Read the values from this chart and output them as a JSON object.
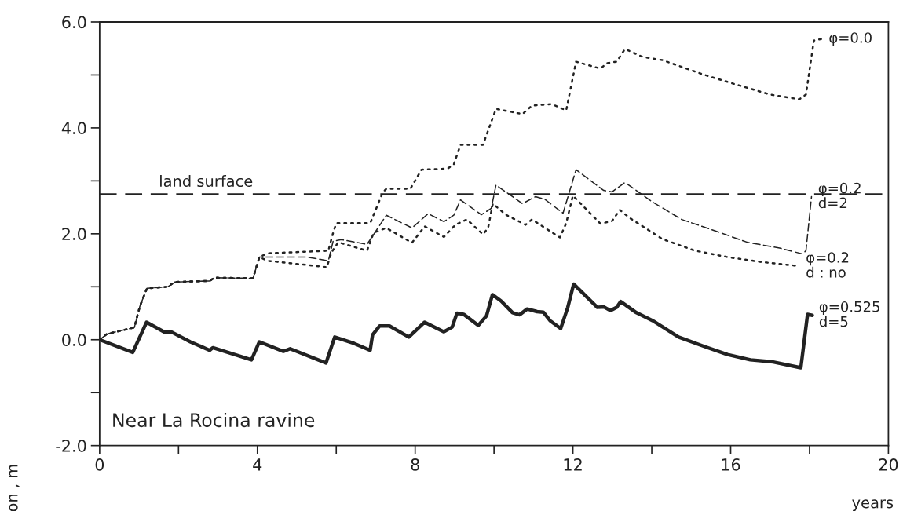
{
  "chart_data": {
    "type": "line",
    "xlabel": "years",
    "ylabel": "on , m",
    "xlim": [
      0,
      20
    ],
    "ylim": [
      -2,
      6
    ],
    "xticks": [
      0,
      {
        "value": 2,
        "label": null
      },
      4,
      {
        "value": 6,
        "label": null
      },
      8,
      {
        "value": 10,
        "label": null
      },
      12,
      {
        "value": 14,
        "label": null
      },
      16,
      {
        "value": 18,
        "label": null
      },
      20
    ],
    "yticks": [
      {
        "value": -2,
        "label": "-2.0"
      },
      {
        "value": -1,
        "label": null
      },
      {
        "value": 0,
        "label": "0.0"
      },
      {
        "value": 1,
        "label": null
      },
      {
        "value": 2,
        "label": "2.0"
      },
      {
        "value": 3,
        "label": null
      },
      {
        "value": 4,
        "label": "4.0"
      },
      {
        "value": 5,
        "label": null
      },
      {
        "value": 6,
        "label": "6.0"
      }
    ],
    "grid": false,
    "legend": false,
    "ref_lines": [
      {
        "axis": "y",
        "value": 2.75,
        "label": "land surface",
        "color": "#222222",
        "line_style": "dashed"
      }
    ],
    "annotations": [
      "Near La Rocina ravine"
    ],
    "series": [
      {
        "name": "φ=0.0",
        "color": "#222222",
        "line_style": "dotted",
        "x": [
          0,
          0.19,
          0.88,
          1.02,
          1.2,
          1.73,
          1.9,
          2.79,
          2.91,
          3.89,
          4.05,
          4.26,
          5.8,
          5.92,
          6.0,
          6.86,
          7.18,
          7.27,
          7.88,
          8.16,
          8.82,
          8.98,
          9.15,
          9.72,
          10.05,
          10.72,
          10.96,
          11.46,
          11.83,
          12.08,
          12.7,
          12.86,
          13.11,
          13.32,
          13.77,
          14.27,
          15.34,
          16.09,
          17.0,
          17.74,
          17.91,
          18.11,
          18.32
        ],
        "values": [
          0,
          0.11,
          0.23,
          0.63,
          0.97,
          1.0,
          1.09,
          1.11,
          1.17,
          1.16,
          1.56,
          1.63,
          1.68,
          2.02,
          2.2,
          2.2,
          2.78,
          2.85,
          2.85,
          3.21,
          3.23,
          3.31,
          3.68,
          3.68,
          4.36,
          4.26,
          4.42,
          4.45,
          4.33,
          5.25,
          5.12,
          5.22,
          5.25,
          5.49,
          5.34,
          5.28,
          5.0,
          4.83,
          4.63,
          4.54,
          4.63,
          5.65,
          5.68
        ]
      },
      {
        "name": "φ=0.2\nd=2",
        "color": "#222222",
        "line_style": "dashed",
        "x": [
          0,
          0.19,
          0.88,
          1.02,
          1.2,
          1.73,
          1.9,
          2.79,
          2.91,
          3.89,
          4.05,
          4.26,
          5.24,
          5.8,
          5.92,
          6.13,
          6.78,
          7.27,
          7.92,
          8.33,
          8.73,
          8.98,
          9.15,
          9.68,
          9.93,
          10.05,
          10.72,
          11.05,
          11.29,
          11.75,
          12.08,
          12.78,
          12.99,
          13.32,
          14.02,
          14.76,
          15.51,
          16.42,
          17.24,
          17.82,
          17.91,
          18.05
        ],
        "values": [
          0,
          0.11,
          0.23,
          0.63,
          0.97,
          1.0,
          1.09,
          1.11,
          1.17,
          1.16,
          1.56,
          1.56,
          1.56,
          1.49,
          1.86,
          1.89,
          1.8,
          2.35,
          2.11,
          2.38,
          2.23,
          2.35,
          2.64,
          2.36,
          2.48,
          2.92,
          2.57,
          2.7,
          2.65,
          2.39,
          3.21,
          2.82,
          2.79,
          2.97,
          2.6,
          2.27,
          2.08,
          1.84,
          1.73,
          1.62,
          1.68,
          2.7
        ]
      },
      {
        "name": "φ=0.2\nd : no",
        "color": "#222222",
        "line_style": "dotted",
        "x": [
          0,
          0.19,
          0.88,
          1.02,
          1.2,
          1.73,
          1.9,
          2.79,
          2.91,
          3.89,
          4.05,
          4.26,
          5.76,
          5.88,
          6.05,
          6.78,
          6.95,
          7.27,
          7.92,
          8.24,
          8.73,
          9.02,
          9.31,
          9.72,
          9.85,
          9.97,
          10.3,
          10.8,
          10.96,
          11.67,
          11.83,
          12.0,
          12.7,
          12.99,
          13.19,
          13.44,
          14.27,
          15.1,
          15.92,
          16.75,
          17.74
        ],
        "values": [
          0,
          0.11,
          0.23,
          0.63,
          0.97,
          1.0,
          1.09,
          1.11,
          1.17,
          1.16,
          1.56,
          1.49,
          1.37,
          1.65,
          1.84,
          1.68,
          2.02,
          2.11,
          1.83,
          2.14,
          1.94,
          2.17,
          2.27,
          1.99,
          2.11,
          2.57,
          2.36,
          2.17,
          2.27,
          1.93,
          2.2,
          2.72,
          2.19,
          2.24,
          2.45,
          2.3,
          1.9,
          1.68,
          1.56,
          1.47,
          1.39
        ]
      },
      {
        "name": "φ=0.525\nd=5",
        "color": "#222222",
        "line_style": "solid",
        "x": [
          0,
          0.84,
          1.19,
          1.65,
          1.81,
          2.3,
          2.79,
          2.87,
          3.85,
          4.05,
          4.66,
          4.83,
          5.74,
          5.96,
          6.45,
          6.86,
          6.92,
          7.1,
          7.35,
          7.84,
          8.24,
          8.73,
          8.94,
          9.06,
          9.23,
          9.6,
          9.81,
          9.96,
          10.18,
          10.47,
          10.65,
          10.84,
          11.09,
          11.25,
          11.42,
          11.69,
          11.87,
          12.02,
          12.62,
          12.78,
          12.95,
          13.11,
          13.21,
          13.61,
          14.02,
          14.68,
          15.34,
          15.92,
          16.5,
          17.08,
          17.78,
          17.95,
          18.07
        ],
        "values": [
          0,
          -0.24,
          0.33,
          0.14,
          0.15,
          -0.04,
          -0.2,
          -0.15,
          -0.38,
          -0.04,
          -0.22,
          -0.17,
          -0.44,
          0.05,
          -0.07,
          -0.2,
          0.09,
          0.26,
          0.26,
          0.05,
          0.33,
          0.15,
          0.24,
          0.5,
          0.48,
          0.27,
          0.45,
          0.85,
          0.73,
          0.51,
          0.47,
          0.58,
          0.53,
          0.52,
          0.36,
          0.21,
          0.61,
          1.05,
          0.61,
          0.62,
          0.55,
          0.61,
          0.72,
          0.51,
          0.36,
          0.05,
          -0.13,
          -0.28,
          -0.38,
          -0.42,
          -0.53,
          0.48,
          0.46
        ]
      }
    ]
  }
}
